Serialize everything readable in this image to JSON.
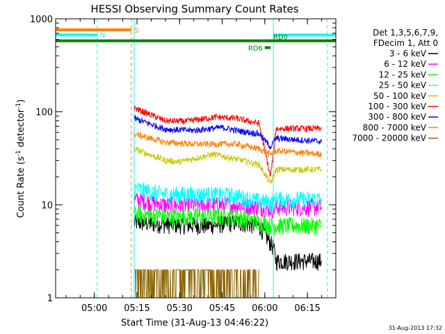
{
  "chart_data": {
    "type": "line",
    "title": "HESSI Observing Summary Count Rates",
    "xlabel": "Start Time (31-Aug-13 04:46:22)",
    "ylabel_main": "Count Rate (s",
    "ylabel_sup1": "-1",
    "ylabel_mid": " detector",
    "ylabel_sup2": "-1",
    "ylabel_end": ")",
    "y_scale": "log",
    "ylim": [
      1,
      1000
    ],
    "x_time_window": [
      "04:46:22",
      "06:25:00"
    ],
    "x_ticks": [
      {
        "t": "05:00",
        "label": "05:00"
      },
      {
        "t": "05:15",
        "label": "05:15"
      },
      {
        "t": "05:30",
        "label": "05:30"
      },
      {
        "t": "05:45",
        "label": "05:45"
      },
      {
        "t": "06:00",
        "label": "06:00"
      },
      {
        "t": "06:15",
        "label": "06:15"
      }
    ],
    "y_ticks": [
      {
        "v": 1,
        "label": "1"
      },
      {
        "v": 10,
        "label": "10"
      },
      {
        "v": 100,
        "label": "100"
      },
      {
        "v": 1000,
        "label": "1000"
      }
    ],
    "legend_header": [
      "Det 1,3,5,6,7,9,",
      "FDecim 1, Att 0"
    ],
    "legend_position": "right",
    "series": [
      {
        "name": "3 - 6 keV",
        "color": "#000000",
        "points": [
          [
            "05:14",
            6.5
          ],
          [
            "05:25",
            6.2
          ],
          [
            "05:40",
            6.0
          ],
          [
            "05:50",
            6.5
          ],
          [
            "05:58",
            6.0
          ],
          [
            "06:03",
            3.5
          ],
          [
            "06:04",
            2.5
          ],
          [
            "06:20",
            2.5
          ]
        ]
      },
      {
        "name": "6 - 12 keV",
        "color": "#ff00ff",
        "points": [
          [
            "05:14",
            11.5
          ],
          [
            "05:25",
            10.0
          ],
          [
            "05:40",
            10.0
          ],
          [
            "05:50",
            10.0
          ],
          [
            "05:58",
            9.5
          ],
          [
            "06:03",
            9.0
          ],
          [
            "06:04",
            9.5
          ],
          [
            "06:20",
            9.5
          ]
        ]
      },
      {
        "name": "12 - 25 keV",
        "color": "#00ff00",
        "points": [
          [
            "05:14",
            8.0
          ],
          [
            "05:25",
            7.5
          ],
          [
            "05:40",
            7.5
          ],
          [
            "05:50",
            7.5
          ],
          [
            "05:58",
            6.5
          ],
          [
            "06:03",
            6.0
          ],
          [
            "06:04",
            6.0
          ],
          [
            "06:20",
            6.0
          ]
        ]
      },
      {
        "name": "25 - 50 keV",
        "color": "#00ffff",
        "points": [
          [
            "05:14",
            15.0
          ],
          [
            "05:25",
            13.0
          ],
          [
            "05:40",
            13.0
          ],
          [
            "05:50",
            12.5
          ],
          [
            "05:58",
            11.0
          ],
          [
            "06:03",
            10.5
          ],
          [
            "06:04",
            11.5
          ],
          [
            "06:20",
            11.5
          ]
        ]
      },
      {
        "name": "50 - 100 keV",
        "color": "#c8c800",
        "points": [
          [
            "05:14",
            40.0
          ],
          [
            "05:25",
            30.0
          ],
          [
            "05:30",
            29.0
          ],
          [
            "05:42",
            35.0
          ],
          [
            "05:50",
            31.0
          ],
          [
            "05:58",
            27.0
          ],
          [
            "06:02",
            17.0
          ],
          [
            "06:04",
            24.0
          ],
          [
            "06:20",
            24.0
          ]
        ]
      },
      {
        "name": "100 - 300 keV",
        "color": "#ff0000",
        "points": [
          [
            "05:14",
            110.0
          ],
          [
            "05:25",
            80.0
          ],
          [
            "05:32",
            79.0
          ],
          [
            "05:43",
            88.0
          ],
          [
            "05:50",
            85.0
          ],
          [
            "05:58",
            75.0
          ],
          [
            "06:02",
            20.0
          ],
          [
            "06:04",
            66.0
          ],
          [
            "06:20",
            66.0
          ]
        ]
      },
      {
        "name": "300 - 800 keV",
        "color": "#0000ff",
        "points": [
          [
            "05:14",
            85.0
          ],
          [
            "05:25",
            65.0
          ],
          [
            "05:35",
            63.0
          ],
          [
            "05:45",
            68.0
          ],
          [
            "05:50",
            63.0
          ],
          [
            "05:58",
            58.0
          ],
          [
            "06:02",
            42.0
          ],
          [
            "06:04",
            52.0
          ],
          [
            "06:20",
            48.0
          ]
        ]
      },
      {
        "name": "800 - 7000 keV",
        "color": "#ff8000",
        "points": [
          [
            "05:14",
            58.0
          ],
          [
            "05:25",
            47.0
          ],
          [
            "05:35",
            45.0
          ],
          [
            "05:50",
            45.0
          ],
          [
            "05:58",
            40.0
          ],
          [
            "06:02",
            35.0
          ],
          [
            "06:04",
            38.0
          ],
          [
            "06:20",
            35.0
          ]
        ]
      },
      {
        "name": "7000 - 20000 keV",
        "color": "#8c6400",
        "points": [
          [
            "05:14",
            2.0
          ],
          [
            "05:20",
            2.0
          ],
          [
            "05:36",
            2.0
          ],
          [
            "05:58",
            2.0
          ]
        ]
      }
    ],
    "vertical_lines": [
      {
        "t": "04:46:22",
        "color": "#00ffff",
        "style": "solid"
      },
      {
        "t": "05:01",
        "color": "#00ffff",
        "style": "dashed"
      },
      {
        "t": "05:13",
        "color": "#ff8000",
        "style": "dashed"
      },
      {
        "t": "05:14",
        "color": "#00ffff",
        "style": "solid"
      },
      {
        "t": "06:03",
        "color": "#00ffff",
        "style": "solid"
      },
      {
        "t": "06:22",
        "color": "#00ffff",
        "style": "dashed"
      }
    ],
    "flag_bars": [
      {
        "label": "S",
        "color": "#ff8000",
        "t_start": "04:46:22",
        "t_end": "05:13",
        "y": 760
      },
      {
        "label": "N",
        "color": "#00ffff",
        "t_start": "04:46:22",
        "t_end": "05:01",
        "y": 670
      },
      {
        "label": "",
        "color": "#00ffff",
        "t_start": "06:03",
        "t_end": "06:25",
        "y": 670
      },
      {
        "label": "",
        "color": "#008000",
        "t_start": "04:46:22",
        "t_end": "06:25",
        "y": 580
      },
      {
        "label": "RD0",
        "color": "#008000",
        "t_start": "06:00",
        "t_end": "06:02",
        "y": 580
      },
      {
        "label": "RD6",
        "color": "#008000",
        "t_start": "06:00",
        "t_end": "06:02",
        "y": 490
      }
    ],
    "footer_date": "31-Aug-2013 17:32"
  }
}
